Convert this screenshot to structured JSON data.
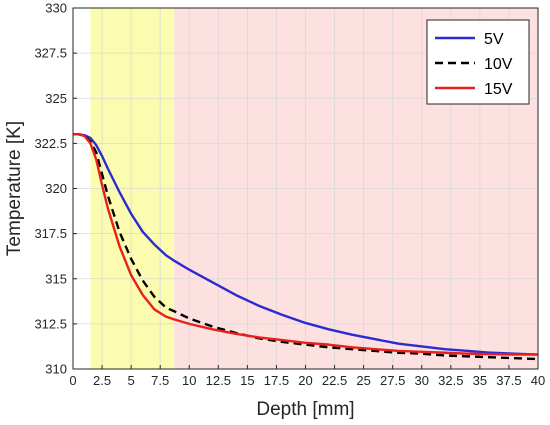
{
  "chart_data": {
    "type": "line",
    "title": "",
    "xlabel": "Depth [mm]",
    "ylabel": "Temperature [K]",
    "xlim": [
      0,
      40
    ],
    "ylim": [
      310,
      330
    ],
    "grid": true,
    "legend_position": "top-right",
    "x_ticks": [
      0,
      2.5,
      5,
      7.5,
      10,
      12.5,
      15,
      17.5,
      20,
      22.5,
      25,
      27.5,
      30,
      32.5,
      35,
      37.5,
      40
    ],
    "y_ticks": [
      310,
      312.5,
      315,
      317.5,
      320,
      322.5,
      325,
      327.5,
      330
    ],
    "regions": [
      {
        "x_start": 0,
        "x_end": 1.5,
        "color": "#ffffff"
      },
      {
        "x_start": 1.5,
        "x_end": 8.7,
        "color": "#fcfcb0"
      },
      {
        "x_start": 8.7,
        "x_end": 40,
        "color": "#fde0e0"
      }
    ],
    "series": [
      {
        "name": "5V",
        "color": "#2b2bd0",
        "dash": "solid",
        "x": [
          0,
          0.5,
          1.0,
          1.5,
          2.0,
          2.5,
          3.0,
          4.0,
          5.0,
          6.0,
          7.0,
          8.0,
          8.7,
          10,
          12,
          14,
          16,
          18,
          20,
          22,
          24,
          26,
          28,
          30,
          32,
          34,
          36,
          38,
          40
        ],
        "y": [
          323.0,
          323.0,
          322.95,
          322.8,
          322.4,
          321.8,
          321.1,
          319.8,
          318.6,
          317.6,
          316.9,
          316.3,
          316.0,
          315.5,
          314.8,
          314.1,
          313.5,
          313.0,
          312.55,
          312.2,
          311.9,
          311.65,
          311.4,
          311.25,
          311.1,
          311.0,
          310.9,
          310.85,
          310.8
        ]
      },
      {
        "name": "10V",
        "color": "#000000",
        "dash": "dashed",
        "x": [
          0,
          0.5,
          1.0,
          1.5,
          2.0,
          2.5,
          3.0,
          4.0,
          5.0,
          6.0,
          7.0,
          8.0,
          8.7,
          10,
          12,
          14,
          16,
          18,
          20,
          22,
          24,
          26,
          28,
          30,
          32,
          34,
          36,
          38,
          40
        ],
        "y": [
          323.0,
          323.0,
          322.9,
          322.6,
          322.0,
          320.8,
          319.6,
          317.6,
          316.1,
          314.9,
          314.0,
          313.4,
          313.2,
          312.8,
          312.35,
          312.0,
          311.7,
          311.5,
          311.35,
          311.2,
          311.1,
          311.0,
          310.9,
          310.85,
          310.75,
          310.7,
          310.65,
          310.6,
          310.55
        ]
      },
      {
        "name": "15V",
        "color": "#e8201c",
        "dash": "solid",
        "x": [
          0,
          0.5,
          1.0,
          1.5,
          2.0,
          2.5,
          3.0,
          4.0,
          5.0,
          6.0,
          7.0,
          8.0,
          8.7,
          10,
          12,
          14,
          16,
          18,
          20,
          22,
          24,
          26,
          28,
          30,
          32,
          34,
          36,
          38,
          40
        ],
        "y": [
          323.0,
          323.0,
          322.9,
          322.5,
          321.6,
          320.2,
          318.9,
          316.8,
          315.2,
          314.1,
          313.3,
          312.9,
          312.75,
          312.5,
          312.2,
          311.95,
          311.75,
          311.6,
          311.45,
          311.35,
          311.2,
          311.1,
          311.0,
          310.95,
          310.9,
          310.85,
          310.82,
          310.8,
          310.8
        ]
      }
    ]
  }
}
